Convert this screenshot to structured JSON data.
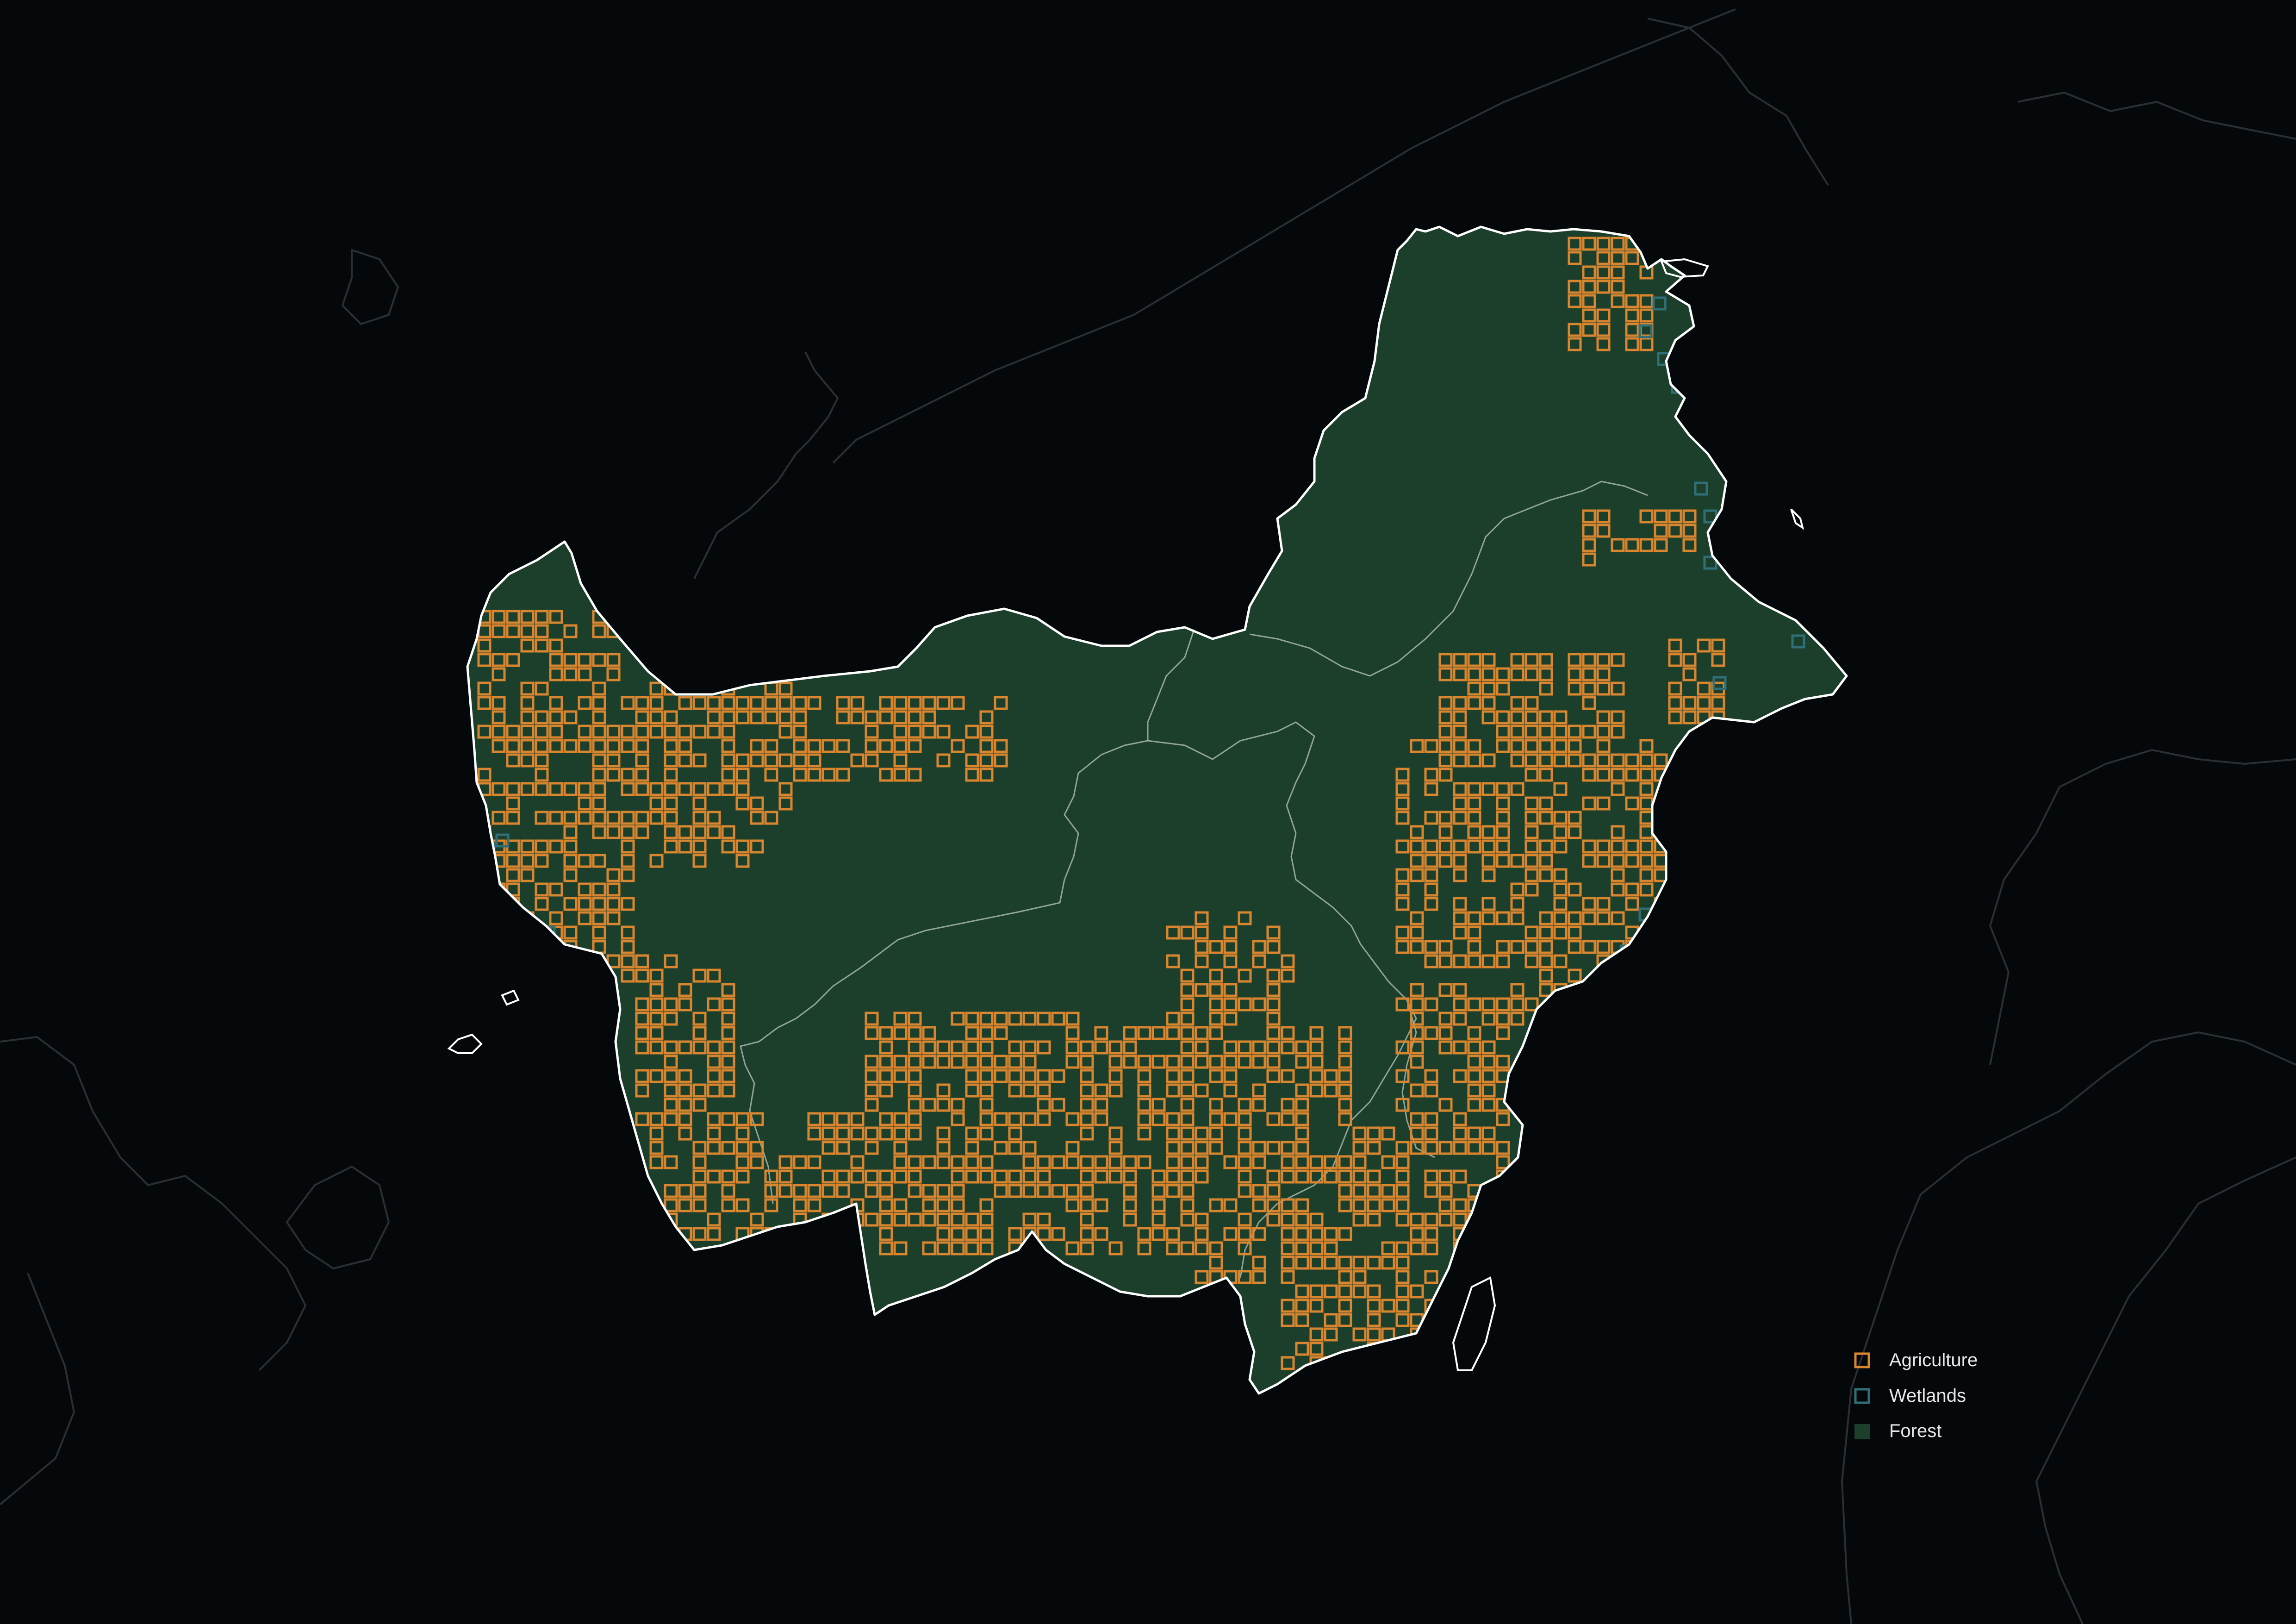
{
  "map": {
    "layers": [
      {
        "id": "agriculture",
        "label": "Agriculture",
        "symbol": "outlined-square",
        "color": "#d9862f"
      },
      {
        "id": "wetlands",
        "label": "Wetlands",
        "symbol": "outlined-square",
        "color": "#2f6f78"
      },
      {
        "id": "forest",
        "label": "Forest",
        "symbol": "filled-square",
        "color": "#1c3f2c"
      }
    ],
    "colors": {
      "background": "#05080a",
      "coastline": "#ffffff",
      "neighbor_outline": "#2a2f33",
      "province_border": "#b9c7bd"
    }
  },
  "legend": {
    "agriculture_label": "Agriculture",
    "wetlands_label": "Wetlands",
    "forest_label": "Forest"
  }
}
